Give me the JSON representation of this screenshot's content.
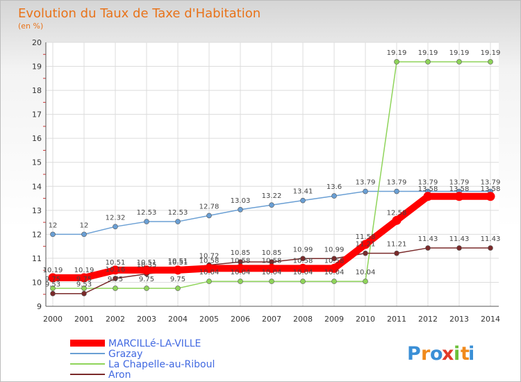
{
  "chart_data": {
    "type": "line",
    "title": "Evolution du Taux de Taxe d'Habitation",
    "unit_label": "(en %)",
    "x": [
      "2000",
      "2001",
      "2002",
      "2003",
      "2004",
      "2005",
      "2006",
      "2007",
      "2008",
      "2009",
      "2010",
      "2011",
      "2012",
      "2013",
      "2014"
    ],
    "ylim": [
      9,
      20
    ],
    "yticks": [
      "9",
      "10",
      "11",
      "12",
      "13",
      "14",
      "15",
      "16",
      "17",
      "18",
      "19",
      "20"
    ],
    "grid": true,
    "legend_position": "bottom-left",
    "series": [
      {
        "name": "MARCILLé-LA-VILLE",
        "color": "#ff0000",
        "values": [
          10.19,
          10.19,
          10.51,
          10.51,
          10.51,
          10.58,
          10.58,
          10.58,
          10.58,
          10.58,
          11.58,
          12.58,
          13.58,
          13.58,
          13.58
        ]
      },
      {
        "name": "Grazay",
        "color": "#6a9fd4",
        "values": [
          12,
          12,
          12.32,
          12.53,
          12.53,
          12.78,
          13.03,
          13.22,
          13.41,
          13.6,
          13.79,
          13.79,
          13.79,
          13.79,
          13.79
        ]
      },
      {
        "name": "La Chapelle-au-Riboul",
        "color": "#8fd45a",
        "values": [
          9.75,
          9.75,
          9.75,
          9.75,
          9.75,
          10.04,
          10.04,
          10.04,
          10.04,
          10.04,
          10.04,
          19.19,
          19.19,
          19.19,
          19.19
        ]
      },
      {
        "name": "Aron",
        "color": "#7a2a2a",
        "values": [
          9.53,
          9.53,
          10.16,
          10.35,
          10.51,
          10.72,
          10.85,
          10.85,
          10.99,
          10.99,
          11.21,
          11.21,
          11.43,
          11.43,
          11.43
        ]
      }
    ]
  },
  "brand": {
    "letters": [
      "P",
      "r",
      "o",
      "x",
      "i",
      "t",
      "i"
    ],
    "colors": [
      "#3a8fd6",
      "#f08a1c",
      "#3a8fd6",
      "#e23b2a",
      "#6cbf3a",
      "#f08a1c",
      "#3a8fd6"
    ]
  }
}
